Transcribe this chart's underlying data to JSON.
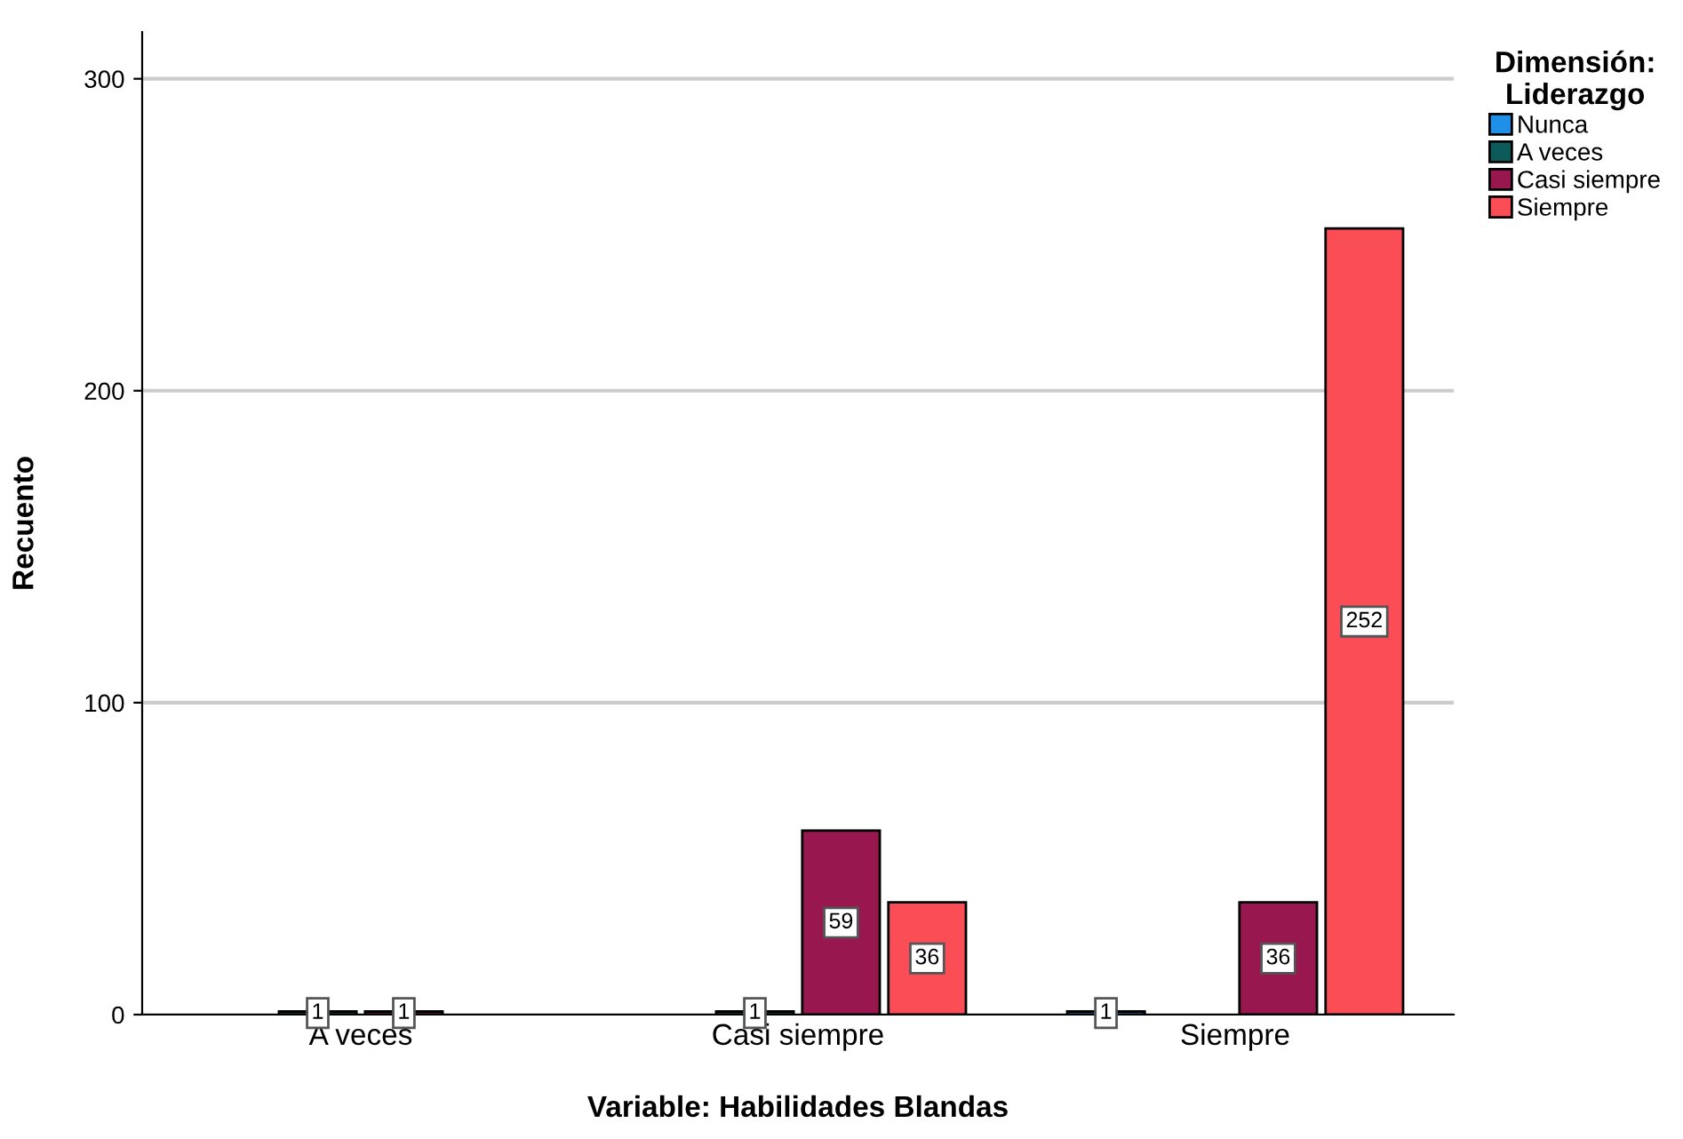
{
  "chart_data": {
    "type": "bar",
    "xlabel": "Variable: Habilidades Blandas",
    "ylabel": "Recuento",
    "legend_title": "Dimensión:\nLiderazgo",
    "categories": [
      "A veces",
      "Casi siempre",
      "Siempre"
    ],
    "series": [
      {
        "name": "Nunca",
        "color": "#1f8fe8",
        "values": [
          null,
          null,
          1
        ]
      },
      {
        "name": "A veces",
        "color": "#0d5a5a",
        "values": [
          1,
          1,
          null
        ]
      },
      {
        "name": "Casi siempre",
        "color": "#99174f",
        "values": [
          1,
          59,
          36
        ]
      },
      {
        "name": "Siempre",
        "color": "#fb4d56",
        "values": [
          null,
          36,
          252
        ]
      }
    ],
    "ylim": [
      0,
      315
    ],
    "yticks": [
      0,
      100,
      200,
      300
    ],
    "grid": "y",
    "legend": "top right",
    "data_labels": true
  }
}
